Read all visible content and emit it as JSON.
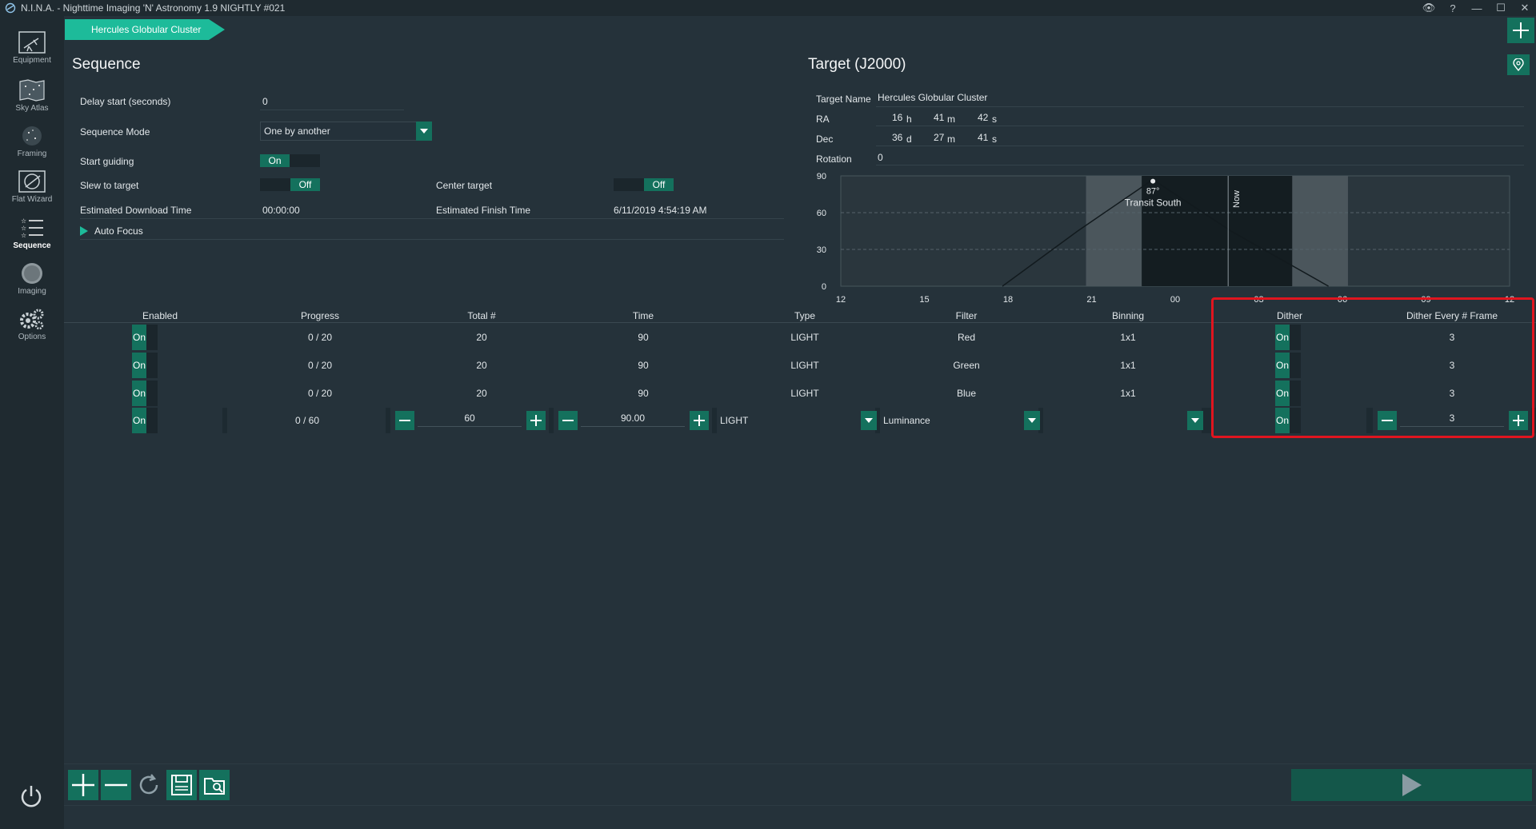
{
  "window": {
    "title": "N.I.N.A. - Nighttime Imaging 'N' Astronomy 1.9 NIGHTLY #021"
  },
  "nav": {
    "items": [
      {
        "label": "Equipment",
        "icon": "telescope-icon"
      },
      {
        "label": "Sky Atlas",
        "icon": "sky-map-icon"
      },
      {
        "label": "Framing",
        "icon": "framing-icon"
      },
      {
        "label": "Flat Wizard",
        "icon": "flat-wizard-icon"
      },
      {
        "label": "Sequence",
        "icon": "sequence-icon"
      },
      {
        "label": "Imaging",
        "icon": "imaging-icon"
      },
      {
        "label": "Options",
        "icon": "gears-icon"
      }
    ]
  },
  "crumb": {
    "label": "Hercules Globular Cluster"
  },
  "sequence": {
    "title": "Sequence",
    "delay_label": "Delay start (seconds)",
    "delay_value": "0",
    "mode_label": "Sequence Mode",
    "mode_value": "One by another",
    "guiding_label": "Start guiding",
    "guiding_value": "On",
    "slew_label": "Slew to target",
    "slew_value": "Off",
    "center_label": "Center target",
    "center_value": "Off",
    "download_label": "Estimated Download Time",
    "download_value": "00:00:00",
    "finish_label": "Estimated Finish Time",
    "finish_value": "6/11/2019 4:54:19 AM",
    "autofocus_label": "Auto Focus"
  },
  "target": {
    "title": "Target (J2000)",
    "name_label": "Target Name",
    "name_value": "Hercules Globular Cluster",
    "ra_label": "RA",
    "ra_h": "16",
    "ra_h_unit": "h",
    "ra_m": "41",
    "ra_m_unit": "m",
    "ra_s": "42",
    "ra_s_unit": "s",
    "dec_label": "Dec",
    "dec_d": "36",
    "dec_d_unit": "d",
    "dec_m": "27",
    "dec_m_unit": "m",
    "dec_s": "41",
    "dec_s_unit": "s",
    "rotation_label": "Rotation",
    "rotation_value": "0"
  },
  "chart_data": {
    "type": "line",
    "y_ticks": [
      "90",
      "60",
      "30",
      "0"
    ],
    "x_ticks": [
      "12",
      "15",
      "18",
      "21",
      "00",
      "03",
      "06",
      "09",
      "12"
    ],
    "ylim": [
      0,
      90
    ],
    "transit_label": "87°",
    "transit_sublabel": "Transit South",
    "now_label": "Now",
    "altitude_curve": [
      {
        "hour": 17.8,
        "alt": 0
      },
      {
        "hour": 20.5,
        "alt": 45
      },
      {
        "hour": 23.2,
        "alt": 87
      },
      {
        "hour": 26,
        "alt": 45
      },
      {
        "hour": 29.5,
        "alt": 0
      }
    ]
  },
  "table": {
    "headers": [
      "Enabled",
      "Progress",
      "Total #",
      "Time",
      "Type",
      "Filter",
      "Binning",
      "Dither",
      "Dither Every # Frame"
    ],
    "rows": [
      {
        "enabled": "On",
        "progress": "0 / 20",
        "total": "20",
        "time": "90",
        "type": "LIGHT",
        "filter": "Red",
        "binning": "1x1",
        "dither": "On",
        "dither_every": "3"
      },
      {
        "enabled": "On",
        "progress": "0 / 20",
        "total": "20",
        "time": "90",
        "type": "LIGHT",
        "filter": "Green",
        "binning": "1x1",
        "dither": "On",
        "dither_every": "3"
      },
      {
        "enabled": "On",
        "progress": "0 / 20",
        "total": "20",
        "time": "90",
        "type": "LIGHT",
        "filter": "Blue",
        "binning": "1x1",
        "dither": "On",
        "dither_every": "3"
      }
    ],
    "edit_row": {
      "enabled": "On",
      "progress": "0 / 60",
      "total": "60",
      "time": "90.00",
      "type": "LIGHT",
      "filter": "Luminance",
      "binning": "",
      "dither": "On",
      "dither_every": "3"
    }
  },
  "colors": {
    "accent": "#14715d",
    "crumb": "#1dbb9a",
    "highlight": "#e0151f"
  }
}
